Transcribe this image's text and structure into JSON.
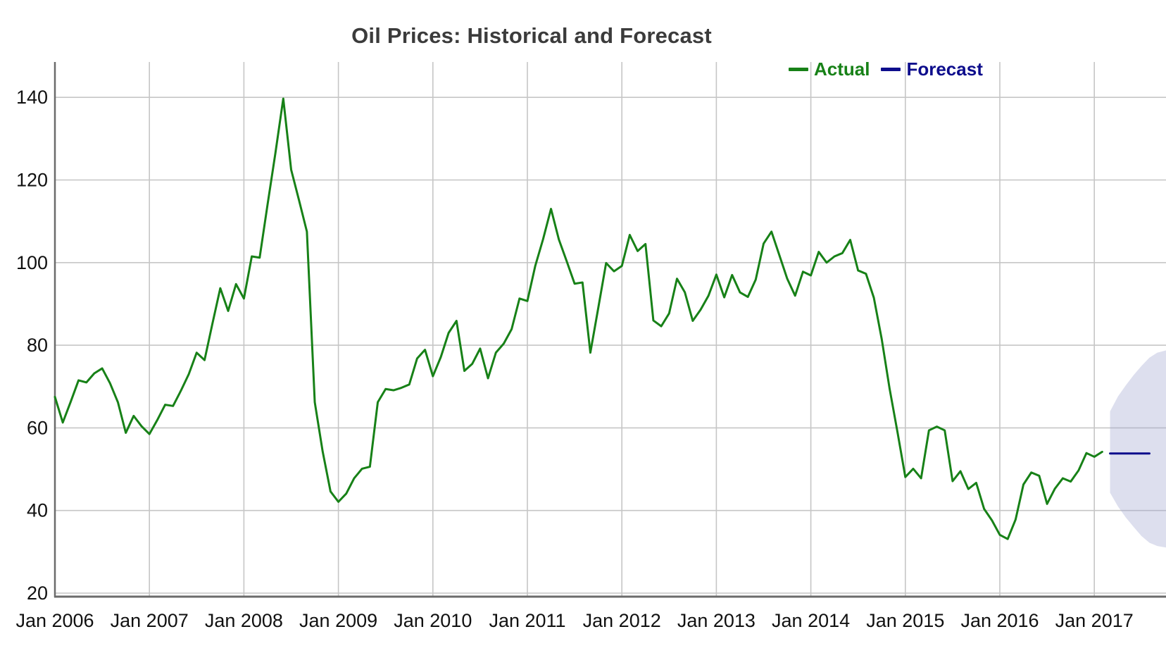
{
  "chart_data": {
    "type": "line",
    "title": "Oil Prices: Historical and Forecast",
    "x_axis": {
      "tick_labels": [
        "Jan 2006",
        "Jan 2007",
        "Jan 2008",
        "Jan 2009",
        "Jan 2010",
        "Jan 2011",
        "Jan 2012",
        "Jan 2013",
        "Jan 2014",
        "Jan 2015",
        "Jan 2016",
        "Jan 2017"
      ],
      "unit": "month",
      "start": "Jan 2006"
    },
    "y_axis": {
      "tick_labels": [
        "20",
        "40",
        "60",
        "80",
        "100",
        "120",
        "140"
      ],
      "ticks": [
        20,
        40,
        60,
        80,
        100,
        120,
        140
      ],
      "range": [
        19,
        151.5
      ]
    },
    "grid": true,
    "legend_position": "top-right-inside",
    "series": [
      {
        "name": "Actual",
        "color": "#178117",
        "start_month_index": 0,
        "values": [
          67.5,
          61.3,
          66.3,
          71.5,
          71.0,
          73.2,
          74.4,
          70.8,
          66.2,
          58.8,
          62.9,
          60.4,
          58.5,
          61.9,
          65.6,
          65.3,
          69.0,
          73.0,
          78.2,
          76.4,
          85.2,
          93.8,
          88.3,
          94.8,
          91.3,
          101.5,
          101.2,
          114.0,
          126.5,
          139.7,
          122.5,
          115.1,
          107.5,
          66.2,
          54.3,
          44.6,
          42.1,
          44.1,
          47.8,
          50.1,
          50.6,
          66.2,
          69.4,
          69.1,
          69.7,
          70.5,
          76.8,
          78.9,
          72.5,
          77.1,
          83.0,
          85.9,
          73.8,
          75.5,
          79.2,
          72.0,
          78.2,
          80.4,
          83.9,
          91.3,
          90.7,
          99.2,
          105.7,
          113.0,
          105.6,
          100.3,
          94.9,
          95.2,
          78.2,
          89.0,
          99.9,
          97.9,
          99.2,
          106.7,
          102.8,
          104.5,
          86.0,
          84.6,
          87.7,
          96.1,
          92.8,
          85.9,
          88.6,
          92.0,
          97.1,
          91.6,
          97.0,
          92.8,
          91.7,
          95.9,
          104.6,
          107.5,
          101.8,
          96.1,
          92.0,
          97.8,
          96.9,
          102.6,
          100.0,
          101.5,
          102.3,
          105.5,
          98.1,
          97.3,
          91.5,
          81.5,
          69.5,
          59.0,
          48.1,
          50.1,
          47.8,
          59.4,
          60.3,
          59.4,
          47.1,
          49.5,
          45.2,
          46.7,
          40.4,
          37.6,
          34.1,
          33.1,
          37.8,
          46.3,
          49.2,
          48.4,
          41.6,
          45.3,
          47.8,
          47.0,
          49.7,
          53.9,
          53.0,
          54.2
        ]
      },
      {
        "name": "Forecast",
        "color": "#0d0d8c",
        "start_month_index": 134,
        "values": [
          53.8,
          53.8,
          53.8,
          53.8,
          53.8,
          53.8
        ]
      }
    ],
    "confidence_band": {
      "label": "forecast-uncertainty-band",
      "fill_color": "#9fa3cf",
      "fill_opacity": 0.35,
      "month_index": [
        134,
        135,
        136,
        137,
        138,
        139,
        140,
        141.2
      ],
      "upper": [
        64.0,
        67.6,
        70.3,
        72.8,
        75.0,
        77.0,
        78.2,
        78.8
      ],
      "lower": [
        44.3,
        41.0,
        38.3,
        36.0,
        33.8,
        32.2,
        31.4,
        31.0
      ]
    },
    "style": {
      "grid_color": "#c6c6c6",
      "axis_color": "#6b6b6b",
      "title_color": "#3b3b3b",
      "tick_label_color": "#111111",
      "background": "#ffffff",
      "line_width": 3
    }
  }
}
